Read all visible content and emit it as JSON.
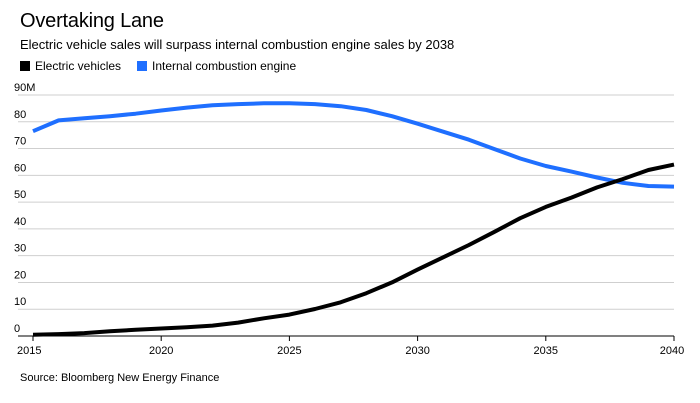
{
  "chart_data": {
    "type": "line",
    "title": "Overtaking Lane",
    "subtitle": "Electric vehicle sales will surpass internal combustion engine sales by 2038",
    "source": "Source: Bloomberg New Energy Finance",
    "xlabel": "",
    "ylabel": "",
    "xlim": [
      2015,
      2040
    ],
    "ylim": [
      0,
      90
    ],
    "x_ticks": [
      2015,
      2020,
      2025,
      2030,
      2035,
      2040
    ],
    "y_ticks": [
      {
        "value": 0,
        "label": "0"
      },
      {
        "value": 10,
        "label": "10"
      },
      {
        "value": 20,
        "label": "20"
      },
      {
        "value": 30,
        "label": "30"
      },
      {
        "value": 40,
        "label": "40"
      },
      {
        "value": 50,
        "label": "50"
      },
      {
        "value": 60,
        "label": "60"
      },
      {
        "value": 70,
        "label": "70"
      },
      {
        "value": 80,
        "label": "80"
      },
      {
        "value": 90,
        "label": "90M"
      }
    ],
    "grid": "horizontal",
    "legend_position": "top-left",
    "x": [
      2015,
      2016,
      2017,
      2018,
      2019,
      2020,
      2021,
      2022,
      2023,
      2024,
      2025,
      2026,
      2027,
      2028,
      2029,
      2030,
      2031,
      2032,
      2033,
      2034,
      2035,
      2036,
      2037,
      2038,
      2039,
      2040
    ],
    "series": [
      {
        "name": "Electric vehicles",
        "color": "#000000",
        "values": [
          0.5,
          0.7,
          1.1,
          1.8,
          2.3,
          2.8,
          3.3,
          3.9,
          5.0,
          6.6,
          8.0,
          10.1,
          12.6,
          16.0,
          20.0,
          24.8,
          29.4,
          34.0,
          38.9,
          44.0,
          48.2,
          51.7,
          55.5,
          58.6,
          62.0,
          64.0
        ]
      },
      {
        "name": "Internal combustion engine",
        "color": "#1f6fff",
        "values": [
          76.5,
          80.5,
          81.3,
          82.1,
          83.0,
          84.2,
          85.3,
          86.2,
          86.6,
          86.9,
          86.9,
          86.6,
          85.8,
          84.4,
          82.1,
          79.3,
          76.3,
          73.3,
          69.8,
          66.3,
          63.5,
          61.4,
          59.2,
          57.2,
          56.0,
          55.8
        ]
      }
    ]
  }
}
